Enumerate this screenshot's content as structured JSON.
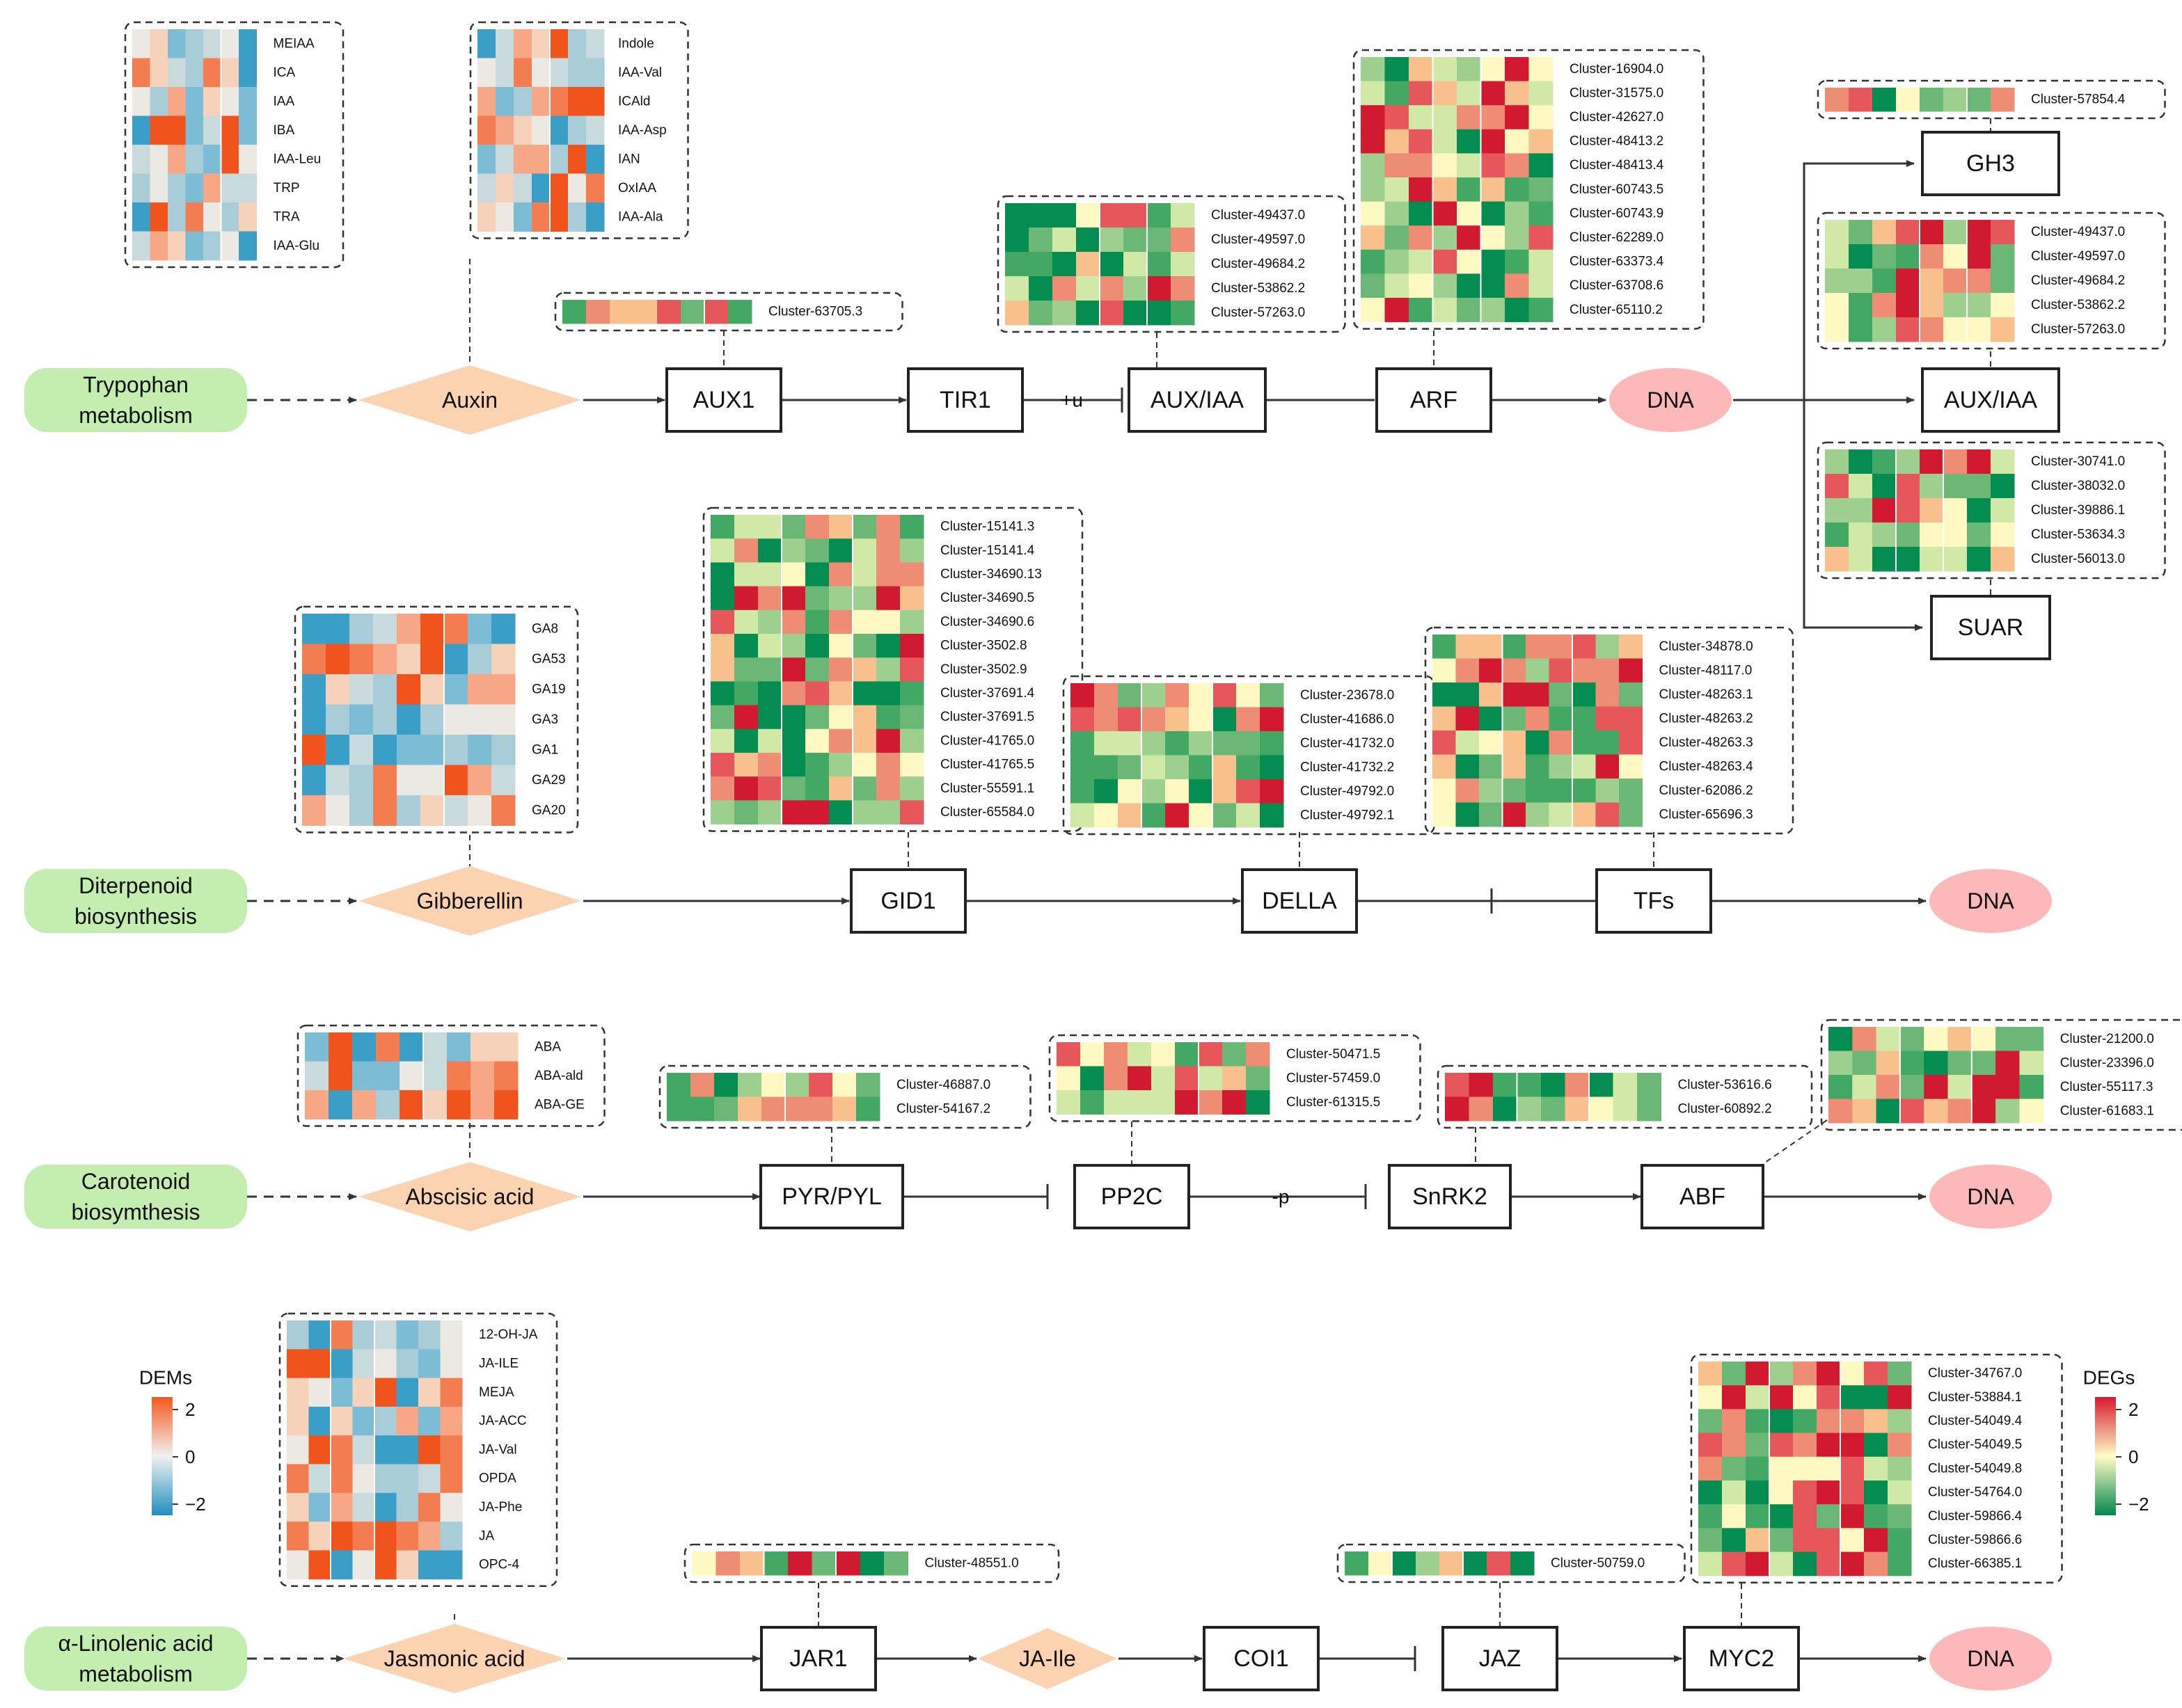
{
  "pathways": [
    {
      "id": "auxin",
      "source": "Trypophan\nmetabolism",
      "hormone": "Auxin",
      "nodes": [
        "AUX1",
        "TIR1",
        "AUX/IAA",
        "ARF",
        "DNA"
      ],
      "links": [
        "->",
        "+u",
        "",
        "->"
      ],
      "branch_nodes": [
        "GH3",
        "AUX/IAA",
        "SUAR"
      ],
      "heatmaps": {
        "metabolites": {
          "left_labels": [
            "MEIAA",
            "ICA",
            "IAA",
            "IBA",
            "IAA-Leu",
            "TRP",
            "TRA",
            "IAA-Glu"
          ],
          "right_labels": [
            "Indole",
            "IAA-Val",
            "ICAld",
            "IAA-Asp",
            "IAN",
            "OxIAA",
            "IAA-Ala"
          ]
        },
        "AUX1": [
          "Cluster-63705.3"
        ],
        "AUX/IAA": [
          "Cluster-49437.0",
          "Cluster-49597.0",
          "Cluster-49684.2",
          "Cluster-53862.2",
          "Cluster-57263.0"
        ],
        "ARF": [
          "Cluster-16904.0",
          "Cluster-31575.0",
          "Cluster-42627.0",
          "Cluster-48413.2",
          "Cluster-48413.4",
          "Cluster-60743.5",
          "Cluster-60743.9",
          "Cluster-62289.0",
          "Cluster-63373.4",
          "Cluster-63708.6",
          "Cluster-65110.2"
        ],
        "GH3": [
          "Cluster-57854.4"
        ],
        "AUX/IAA-2": [
          "Cluster-49437.0",
          "Cluster-49597.0",
          "Cluster-49684.2",
          "Cluster-53862.2",
          "Cluster-57263.0"
        ],
        "SUAR": [
          "Cluster-30741.0",
          "Cluster-38032.0",
          "Cluster-39886.1",
          "Cluster-53634.3",
          "Cluster-56013.0"
        ]
      }
    },
    {
      "id": "gibberellin",
      "source": "Diterpenoid\nbiosynthesis",
      "hormone": "Gibberellin",
      "nodes": [
        "GID1",
        "DELLA",
        "TFs",
        "DNA"
      ],
      "heatmaps": {
        "metabolites": [
          "GA8",
          "GA53",
          "GA19",
          "GA3",
          "GA1",
          "GA29",
          "GA20"
        ],
        "GID1": [
          "Cluster-15141.3",
          "Cluster-15141.4",
          "Cluster-34690.13",
          "Cluster-34690.5",
          "Cluster-34690.6",
          "Cluster-3502.8",
          "Cluster-3502.9",
          "Cluster-37691.4",
          "Cluster-37691.5",
          "Cluster-41765.0",
          "Cluster-41765.5",
          "Cluster-55591.1",
          "Cluster-65584.0"
        ],
        "DELLA": [
          "Cluster-23678.0",
          "Cluster-41686.0",
          "Cluster-41732.0",
          "Cluster-41732.2",
          "Cluster-49792.0",
          "Cluster-49792.1"
        ],
        "TFs": [
          "Cluster-34878.0",
          "Cluster-48117.0",
          "Cluster-48263.1",
          "Cluster-48263.2",
          "Cluster-48263.3",
          "Cluster-48263.4",
          "Cluster-62086.2",
          "Cluster-65696.3"
        ]
      }
    },
    {
      "id": "aba",
      "source": "Carotenoid\nbiosymthesis",
      "hormone": "Abscisic acid",
      "nodes": [
        "PYR/PYL",
        "PP2C",
        "SnRK2",
        "ABF",
        "DNA"
      ],
      "links": [
        "-|",
        "-p",
        "->",
        "->"
      ],
      "heatmaps": {
        "metabolites": [
          "ABA",
          "ABA-ald",
          "ABA-GE"
        ],
        "PYR/PYL": [
          "Cluster-46887.0",
          "Cluster-54167.2"
        ],
        "PP2C": [
          "Cluster-50471.5",
          "Cluster-57459.0",
          "Cluster-61315.5"
        ],
        "SnRK2": [
          "Cluster-53616.6",
          "Cluster-60892.2"
        ],
        "ABF": [
          "Cluster-21200.0",
          "Cluster-23396.0",
          "Cluster-55117.3",
          "Cluster-61683.1"
        ]
      }
    },
    {
      "id": "ja",
      "source": "α-Linolenic acid\nmetabolism",
      "hormone": "Jasmonic acid",
      "nodes": [
        "JAR1",
        "JA-Ile",
        "COI1",
        "JAZ",
        "MYC2",
        "DNA"
      ],
      "heatmaps": {
        "metabolites": [
          "12-OH-JA",
          "JA-ILE",
          "MEJA",
          "JA-ACC",
          "JA-Val",
          "OPDA",
          "JA-Phe",
          "JA",
          "OPC-4"
        ],
        "JAR1": [
          "Cluster-48551.0"
        ],
        "JAZ": [
          "Cluster-50759.0"
        ],
        "MYC2": [
          "Cluster-34767.0",
          "Cluster-53884.1",
          "Cluster-54049.4",
          "Cluster-54049.5",
          "Cluster-54049.8",
          "Cluster-54764.0",
          "Cluster-59866.4",
          "Cluster-59866.6",
          "Cluster-66385.1"
        ]
      }
    }
  ],
  "legends": {
    "dems": {
      "title": "DEMs",
      "ticks": [
        "2",
        "0",
        "−2"
      ],
      "colors": [
        "#f4581f",
        "#f1f1f1",
        "#1f8fbf"
      ]
    },
    "degs": {
      "title": "DEGs",
      "ticks": [
        "2",
        "0",
        "−2"
      ],
      "colors": [
        "#d7192d",
        "#fffcc8",
        "#01884a"
      ]
    }
  },
  "colors": {
    "source_fill": "#c3eeb0",
    "hormone_fill": "#fcd3b0",
    "dna_fill": "#fdb8b8",
    "dem_palette": [
      "#3a9ec7",
      "#7cbcd4",
      "#a9cdd8",
      "#c9dadd",
      "#ece9e2",
      "#f6d2bb",
      "#f7a785",
      "#f47c51",
      "#f0531b"
    ],
    "deg_palette": [
      "#058c50",
      "#43a864",
      "#6bb876",
      "#9dd08f",
      "#d1e9a7",
      "#fef8c2",
      "#f8c08c",
      "#ee8c74",
      "#e5575a",
      "#d1192f"
    ]
  }
}
